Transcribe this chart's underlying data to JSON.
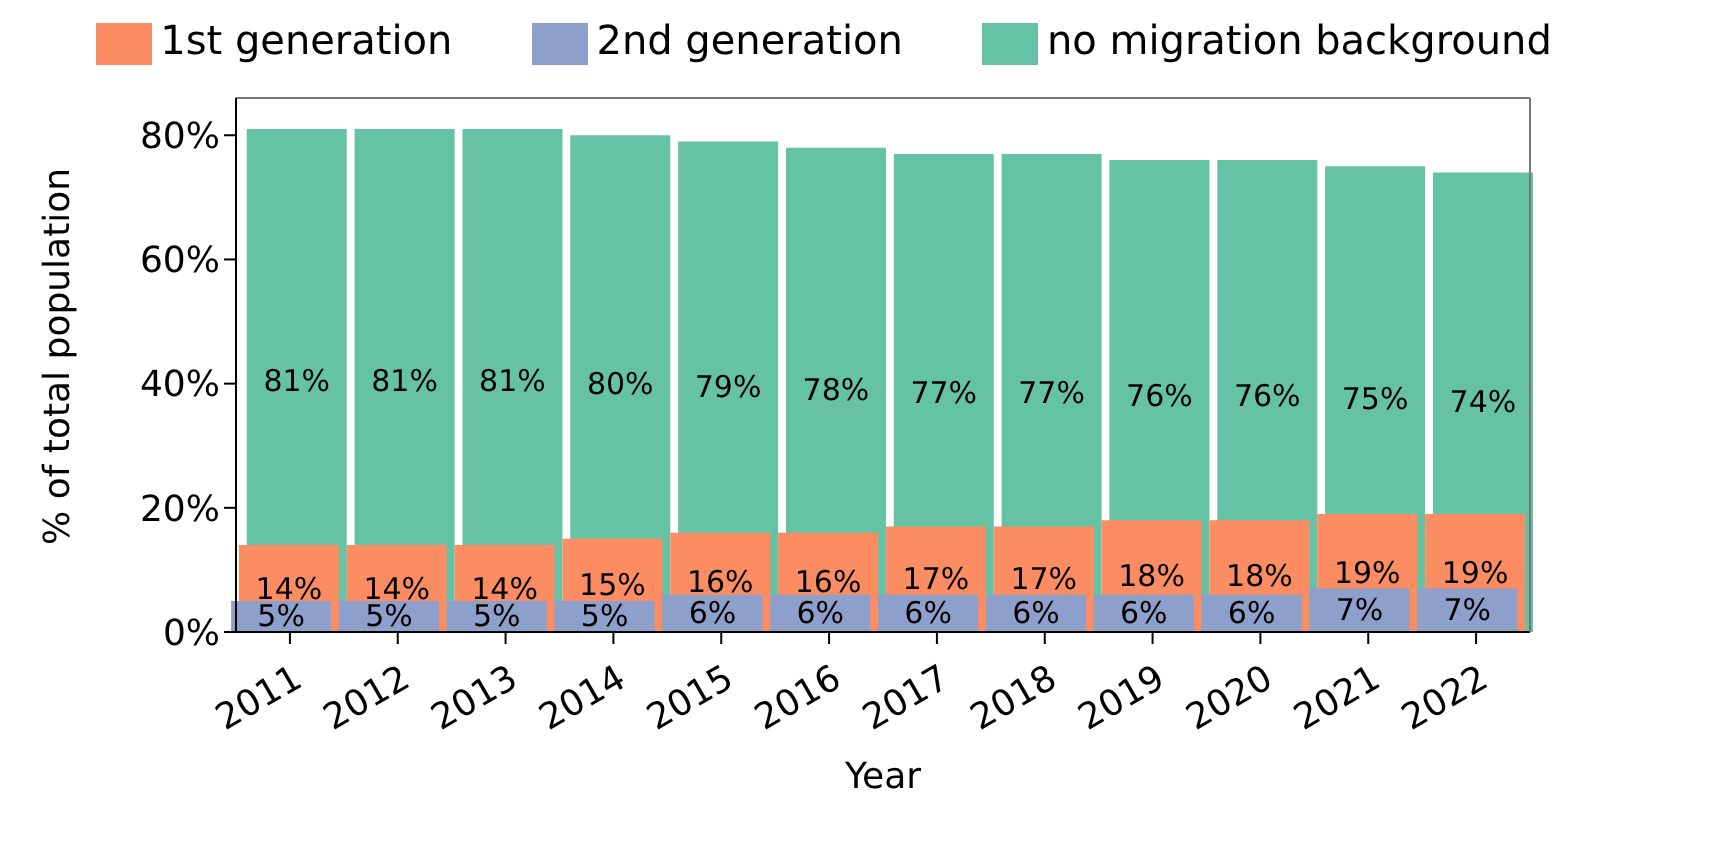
{
  "chart_data": {
    "type": "bar",
    "xlabel": "Year",
    "ylabel": "% of total population",
    "categories": [
      "2011",
      "2012",
      "2013",
      "2014",
      "2015",
      "2016",
      "2017",
      "2018",
      "2019",
      "2020",
      "2021",
      "2022"
    ],
    "series": [
      {
        "name": "no migration background",
        "color": "#66c2a5",
        "values": [
          81,
          81,
          81,
          80,
          79,
          78,
          77,
          77,
          76,
          76,
          75,
          74
        ],
        "value_labels": [
          "81%",
          "81%",
          "81%",
          "80%",
          "79%",
          "78%",
          "77%",
          "77%",
          "76%",
          "76%",
          "75%",
          "74%"
        ]
      },
      {
        "name": "1st generation",
        "color": "#fc8d62",
        "values": [
          14,
          14,
          14,
          15,
          16,
          16,
          17,
          17,
          18,
          18,
          19,
          19
        ],
        "value_labels": [
          "14%",
          "14%",
          "14%",
          "15%",
          "16%",
          "16%",
          "17%",
          "17%",
          "18%",
          "18%",
          "19%",
          "19%"
        ]
      },
      {
        "name": "2nd generation",
        "color": "#8da0cb",
        "values": [
          5,
          5,
          5,
          5,
          6,
          6,
          6,
          6,
          6,
          6,
          7,
          7
        ],
        "value_labels": [
          "5%",
          "5%",
          "5%",
          "5%",
          "6%",
          "6%",
          "6%",
          "6%",
          "6%",
          "6%",
          "7%",
          "7%"
        ]
      }
    ],
    "ylim": [
      0,
      86
    ],
    "yticks": [
      {
        "value": 0,
        "label": "0%"
      },
      {
        "value": 20,
        "label": "20%"
      },
      {
        "value": 40,
        "label": "40%"
      },
      {
        "value": 60,
        "label": "60%"
      },
      {
        "value": 80,
        "label": "80%"
      }
    ],
    "legend": "top",
    "grid": false
  }
}
